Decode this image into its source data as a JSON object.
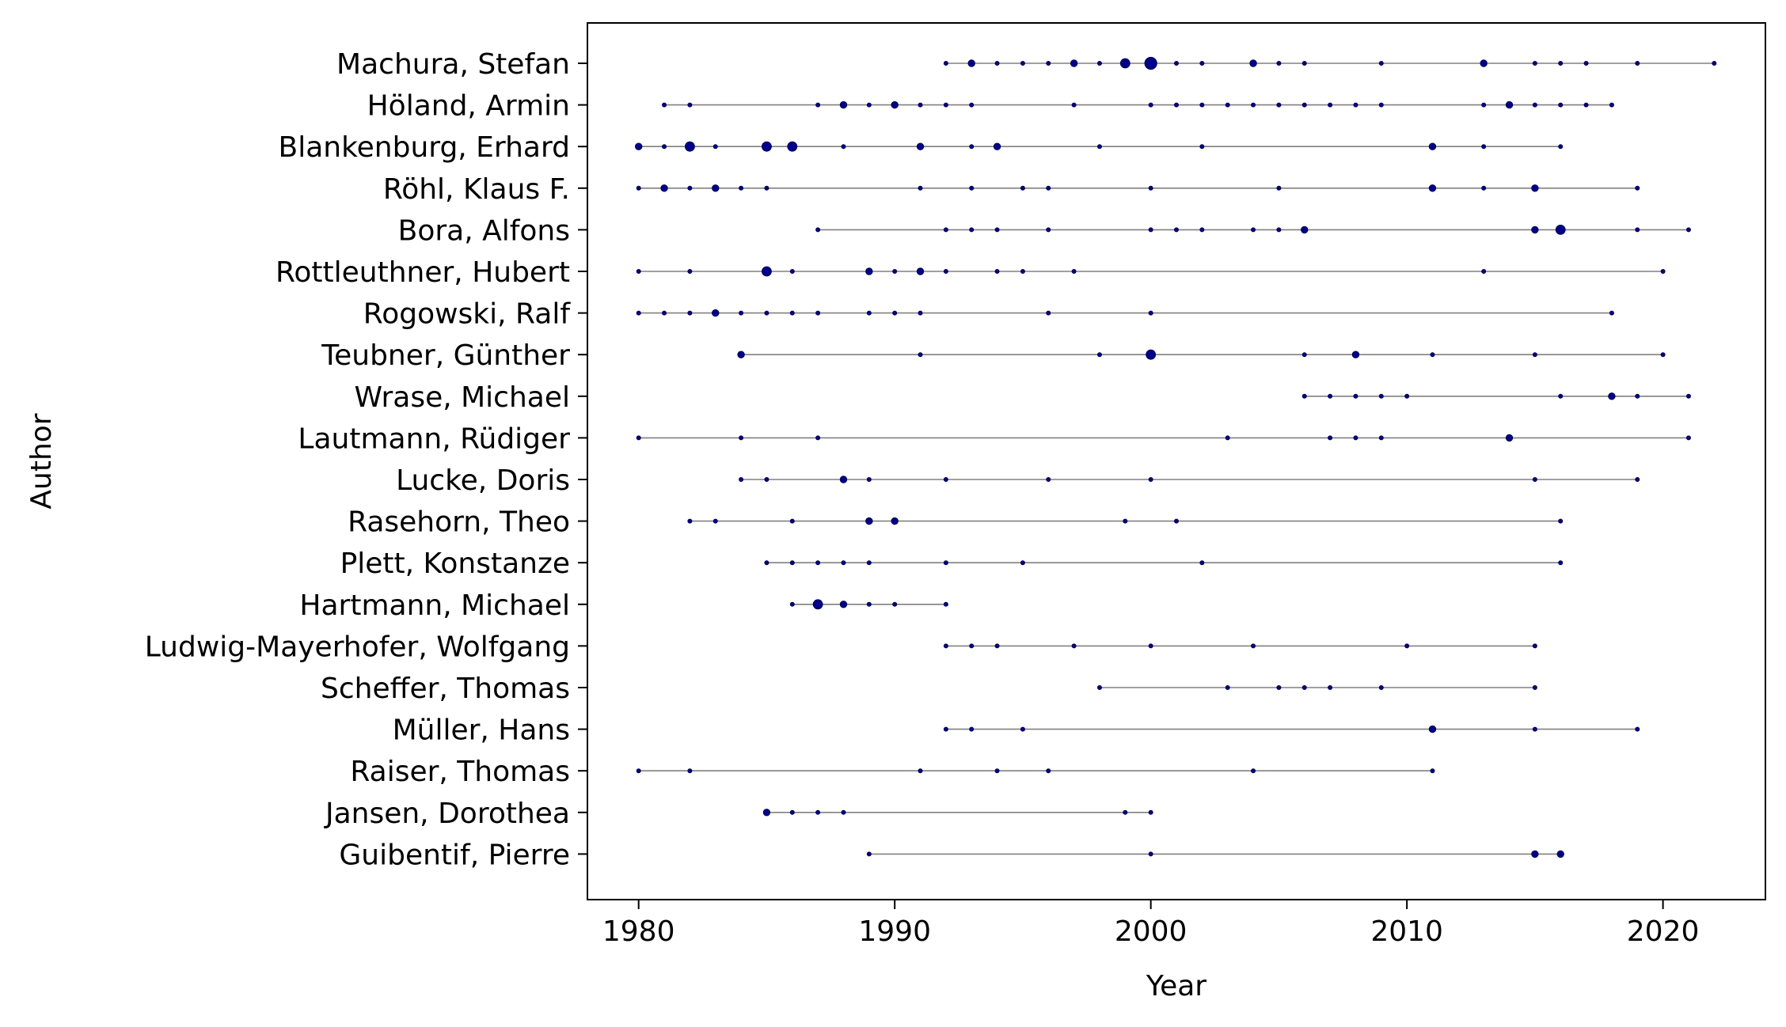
{
  "chart_data": {
    "type": "scatter",
    "title": "",
    "xlabel": "Year",
    "ylabel": "Author",
    "xlim": [
      1978,
      2024
    ],
    "xticks": [
      1980,
      1990,
      2000,
      2010,
      2020
    ],
    "grid": false,
    "legend": "none",
    "colors": {
      "point": "#00008b",
      "line": "#808080"
    },
    "series": [
      {
        "author": "Guibentif, Pierre",
        "years": [
          1989,
          2000,
          2015,
          2015,
          2016,
          2016
        ]
      },
      {
        "author": "Jansen, Dorothea",
        "years": [
          1985,
          1985,
          1986,
          1987,
          1988,
          1999,
          2000
        ]
      },
      {
        "author": "Raiser, Thomas",
        "years": [
          1980,
          1982,
          1991,
          1994,
          1996,
          2004,
          2011
        ]
      },
      {
        "author": "Müller, Hans",
        "years": [
          1992,
          1993,
          1995,
          2011,
          2011,
          2015,
          2019
        ]
      },
      {
        "author": "Scheffer, Thomas",
        "years": [
          1998,
          2003,
          2005,
          2006,
          2007,
          2009,
          2015
        ]
      },
      {
        "author": "Ludwig-Mayerhofer, Wolfgang",
        "years": [
          1992,
          1993,
          1994,
          1997,
          2000,
          2004,
          2010,
          2015
        ]
      },
      {
        "author": "Hartmann, Michael",
        "years": [
          1986,
          1987,
          1987,
          1987,
          1988,
          1988,
          1989,
          1990,
          1992
        ]
      },
      {
        "author": "Plett, Konstanze",
        "years": [
          1985,
          1986,
          1987,
          1988,
          1989,
          1992,
          1995,
          2002,
          2016
        ]
      },
      {
        "author": "Rasehorn, Theo",
        "years": [
          1982,
          1983,
          1986,
          1989,
          1989,
          1990,
          1990,
          1999,
          2001,
          2016
        ]
      },
      {
        "author": "Lucke, Doris",
        "years": [
          1984,
          1985,
          1988,
          1988,
          1989,
          1992,
          1996,
          2000,
          2015,
          2019
        ]
      },
      {
        "author": "Lautmann, Rüdiger",
        "years": [
          1980,
          1984,
          1987,
          2003,
          2007,
          2008,
          2009,
          2014,
          2014,
          2021
        ]
      },
      {
        "author": "Wrase, Michael",
        "years": [
          2006,
          2007,
          2008,
          2009,
          2010,
          2016,
          2018,
          2018,
          2019,
          2021
        ]
      },
      {
        "author": "Teubner, Günther",
        "years": [
          1984,
          1984,
          1991,
          1998,
          2000,
          2000,
          2000,
          2006,
          2008,
          2008,
          2011,
          2015,
          2020
        ]
      },
      {
        "author": "Rogowski, Ralf",
        "years": [
          1980,
          1981,
          1982,
          1983,
          1983,
          1984,
          1985,
          1986,
          1987,
          1989,
          1990,
          1991,
          1996,
          2000,
          2018
        ]
      },
      {
        "author": "Rottleuthner, Hubert",
        "years": [
          1980,
          1982,
          1985,
          1985,
          1985,
          1986,
          1989,
          1989,
          1990,
          1991,
          1991,
          1992,
          1994,
          1995,
          1997,
          2013,
          2020
        ]
      },
      {
        "author": "Bora, Alfons",
        "years": [
          1987,
          1992,
          1993,
          1994,
          1996,
          2000,
          2001,
          2002,
          2004,
          2005,
          2006,
          2006,
          2015,
          2015,
          2016,
          2016,
          2016,
          2019,
          2021
        ]
      },
      {
        "author": "Röhl, Klaus F.",
        "years": [
          1980,
          1981,
          1981,
          1982,
          1983,
          1983,
          1984,
          1985,
          1991,
          1993,
          1995,
          1996,
          2000,
          2005,
          2011,
          2011,
          2013,
          2015,
          2015,
          2019
        ]
      },
      {
        "author": "Blankenburg, Erhard",
        "years": [
          1980,
          1980,
          1981,
          1982,
          1982,
          1982,
          1983,
          1985,
          1985,
          1985,
          1986,
          1986,
          1986,
          1988,
          1991,
          1991,
          1993,
          1994,
          1994,
          1998,
          2002,
          2011,
          2011,
          2013,
          2016
        ]
      },
      {
        "author": "Höland, Armin",
        "years": [
          1981,
          1982,
          1987,
          1988,
          1988,
          1989,
          1990,
          1990,
          1991,
          1992,
          1993,
          1997,
          2000,
          2001,
          2002,
          2003,
          2004,
          2005,
          2006,
          2007,
          2008,
          2009,
          2013,
          2014,
          2014,
          2015,
          2016,
          2017,
          2018
        ]
      },
      {
        "author": "Machura, Stefan",
        "years": [
          1992,
          1993,
          1993,
          1994,
          1995,
          1996,
          1997,
          1997,
          1998,
          1999,
          1999,
          1999,
          2000,
          2000,
          2000,
          2000,
          2001,
          2002,
          2004,
          2004,
          2005,
          2006,
          2009,
          2013,
          2013,
          2015,
          2016,
          2017,
          2019,
          2022
        ]
      }
    ]
  }
}
